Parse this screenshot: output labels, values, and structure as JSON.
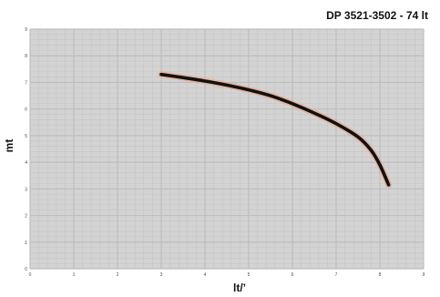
{
  "chart_data": {
    "type": "line",
    "title": "DP 3521-3502  -  74 lt",
    "xlabel": "lt/’",
    "ylabel": "mt",
    "xlim": [
      0,
      9
    ],
    "ylim": [
      0,
      9
    ],
    "x_ticks": [
      "0",
      "1",
      "2",
      "3",
      "4",
      "5",
      "6",
      "7",
      "8",
      "9"
    ],
    "y_ticks": [
      "0",
      "1",
      "2",
      "3",
      "4",
      "5",
      "6",
      "7",
      "8",
      "9"
    ],
    "grid": true,
    "legend": "none",
    "series": [
      {
        "x": [
          3.0,
          3.5,
          4.0,
          4.5,
          5.0,
          5.5,
          6.0,
          6.5,
          7.0,
          7.5,
          7.8,
          8.0,
          8.2
        ],
        "y": [
          7.3,
          7.18,
          7.05,
          6.9,
          6.72,
          6.5,
          6.2,
          5.85,
          5.45,
          4.95,
          4.45,
          3.9,
          3.15
        ],
        "color": "#111111"
      }
    ],
    "colors": {
      "plot_background": "#d3d3d3",
      "grid_major": "#bdbdbd",
      "grid_minor": "#c6c6c6",
      "curve": "#111111",
      "curve_glow": "#e9a98e"
    }
  }
}
